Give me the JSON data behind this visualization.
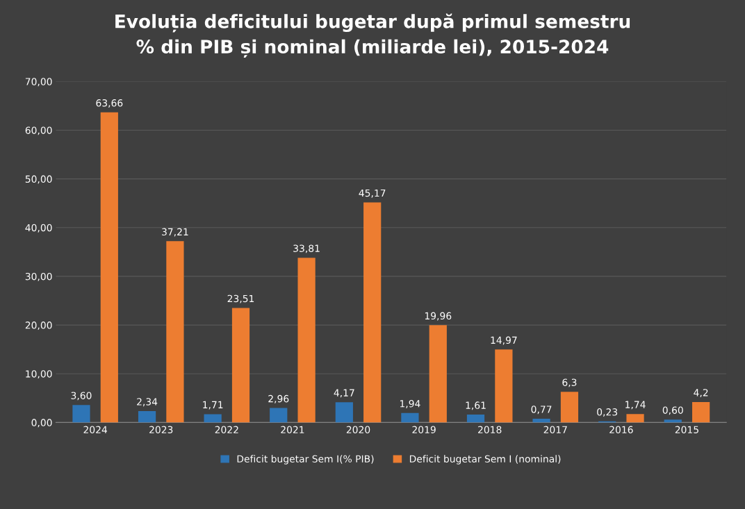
{
  "chart_data": {
    "type": "bar",
    "title": "Evoluția deficitului bugetar după primul semestru\n% din PIB și nominal (miliarde lei), 2015-2024",
    "categories": [
      "2024",
      "2023",
      "2022",
      "2021",
      "2020",
      "2019",
      "2018",
      "2017",
      "2016",
      "2015"
    ],
    "series": [
      {
        "name": "Deficit bugetar Sem I(% PIB)",
        "color": "#2e75b6",
        "values": [
          3.6,
          2.34,
          1.71,
          2.96,
          4.17,
          1.94,
          1.61,
          0.77,
          0.23,
          0.6
        ],
        "value_labels": [
          "3,60",
          "2,34",
          "1,71",
          "2,96",
          "4,17",
          "1,94",
          "1,61",
          "0,77",
          "0,23",
          "0,60"
        ]
      },
      {
        "name": "Deficit bugetar Sem I (nominal)",
        "color": "#ed7d31",
        "values": [
          63.66,
          37.21,
          23.51,
          33.81,
          45.17,
          19.96,
          14.97,
          6.3,
          1.74,
          4.2
        ],
        "value_labels": [
          "63,66",
          "37,21",
          "23,51",
          "33,81",
          "45,17",
          "19,96",
          "14,97",
          "6,3",
          "1,74",
          "4,2"
        ]
      }
    ],
    "ylim": [
      0,
      70
    ],
    "yticks": [
      {
        "value": 0,
        "label": "0,00"
      },
      {
        "value": 10,
        "label": "10,00"
      },
      {
        "value": 20,
        "label": "20,00"
      },
      {
        "value": 30,
        "label": "30,00"
      },
      {
        "value": 40,
        "label": "40,00"
      },
      {
        "value": 50,
        "label": "50,00"
      },
      {
        "value": 60,
        "label": "60,00"
      },
      {
        "value": 70,
        "label": "70,00"
      }
    ],
    "grid": "y",
    "legend": "bottom"
  }
}
